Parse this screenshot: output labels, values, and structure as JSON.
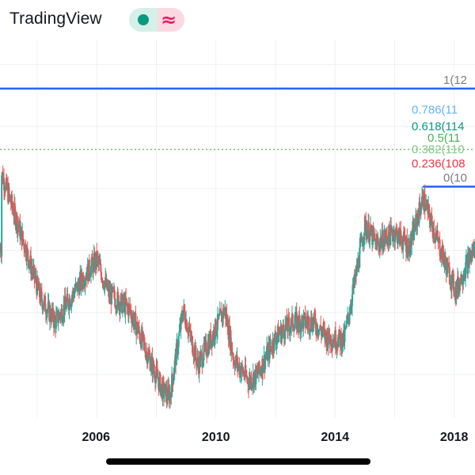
{
  "app": {
    "name": "TradingView",
    "status_icon": "green-dot-icon",
    "wave_icon": "wave-icon",
    "wave_glyph": "≈"
  },
  "colors": {
    "up": "#26a69a",
    "down": "#ef5350",
    "level_line": "#2962ff",
    "dotted_line": "#4caf50"
  },
  "chart_data": {
    "type": "candlestick",
    "x_ticks": [
      "2006",
      "2010",
      "2014",
      "2018"
    ],
    "x_range": [
      2002.75,
      2018.7
    ],
    "y_range": [
      73,
      134
    ],
    "grid": true,
    "fib_levels": [
      {
        "label": "1(12",
        "value": 126.1,
        "color": "#787b86"
      },
      {
        "label": "0.786(11",
        "value": 122.7,
        "color": "#64b5f6"
      },
      {
        "label": "0.618(114",
        "value": 120.0,
        "color": "#089981"
      },
      {
        "label": "0.5(11",
        "value": 118.2,
        "color": "#4caf50"
      },
      {
        "label": "0.382(110",
        "value": 116.3,
        "color": "#81c784"
      },
      {
        "label": "0.236(108",
        "value": 114.0,
        "color": "#f23645"
      },
      {
        "label": "0(10",
        "value": 110.3,
        "color": "#787b86"
      }
    ],
    "trend_points": [
      [
        2002.8,
        112.5
      ],
      [
        2003.6,
        100.5
      ],
      [
        2004.1,
        92.5
      ],
      [
        2004.6,
        88.5
      ],
      [
        2005.6,
        96.0
      ],
      [
        2006.0,
        98.5
      ],
      [
        2006.4,
        93.0
      ],
      [
        2007.1,
        90.5
      ],
      [
        2007.6,
        84.5
      ],
      [
        2008.2,
        77.5
      ],
      [
        2008.45,
        76.5
      ],
      [
        2008.9,
        90.5
      ],
      [
        2009.4,
        81.5
      ],
      [
        2009.9,
        86.5
      ],
      [
        2010.3,
        90.5
      ],
      [
        2010.6,
        82.5
      ],
      [
        2011.1,
        79.0
      ],
      [
        2011.4,
        80.0
      ],
      [
        2012.0,
        86.0
      ],
      [
        2012.6,
        88.5
      ],
      [
        2013.3,
        88.5
      ],
      [
        2013.7,
        86.0
      ],
      [
        2014.3,
        85.5
      ],
      [
        2014.7,
        96.0
      ],
      [
        2015.0,
        104.0
      ],
      [
        2015.4,
        101.0
      ],
      [
        2016.0,
        103.0
      ],
      [
        2016.5,
        100.5
      ],
      [
        2016.95,
        108.5
      ],
      [
        2017.3,
        103.5
      ],
      [
        2017.7,
        98.0
      ],
      [
        2018.05,
        93.5
      ],
      [
        2018.4,
        97.5
      ],
      [
        2018.7,
        100.5
      ]
    ]
  }
}
